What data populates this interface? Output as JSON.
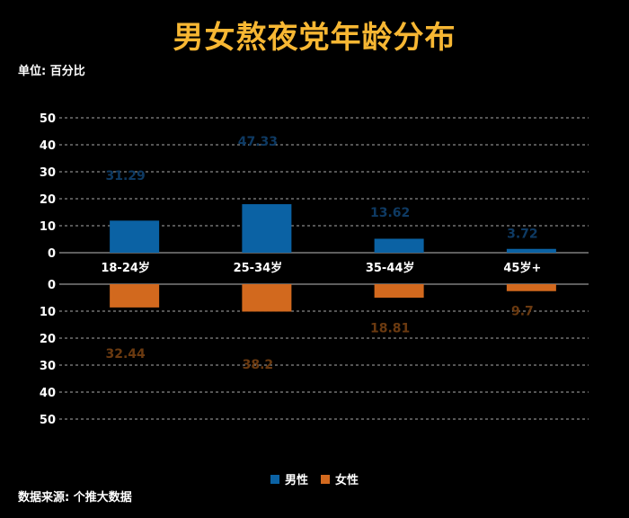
{
  "chart_data": {
    "type": "bar",
    "title": "男女熬夜党年龄分布",
    "unit_label": "单位: 百分比",
    "source_label": "数据来源: 个推大数据",
    "categories": [
      "18-24岁",
      "25-34岁",
      "35-44岁",
      "45岁+"
    ],
    "series": [
      {
        "name": "男性",
        "color": "#0B62A4",
        "label_color": "#0E3A63",
        "values": [
          31.29,
          47.33,
          13.62,
          3.72
        ]
      },
      {
        "name": "女性",
        "color": "#D2691E",
        "label_color": "#6B3A10",
        "values": [
          32.44,
          38.2,
          18.81,
          9.7
        ]
      }
    ],
    "yticks": [
      0,
      10,
      20,
      30,
      40,
      50
    ],
    "ylim": [
      0,
      50
    ],
    "grid": true,
    "legend_position": "bottom-center"
  }
}
